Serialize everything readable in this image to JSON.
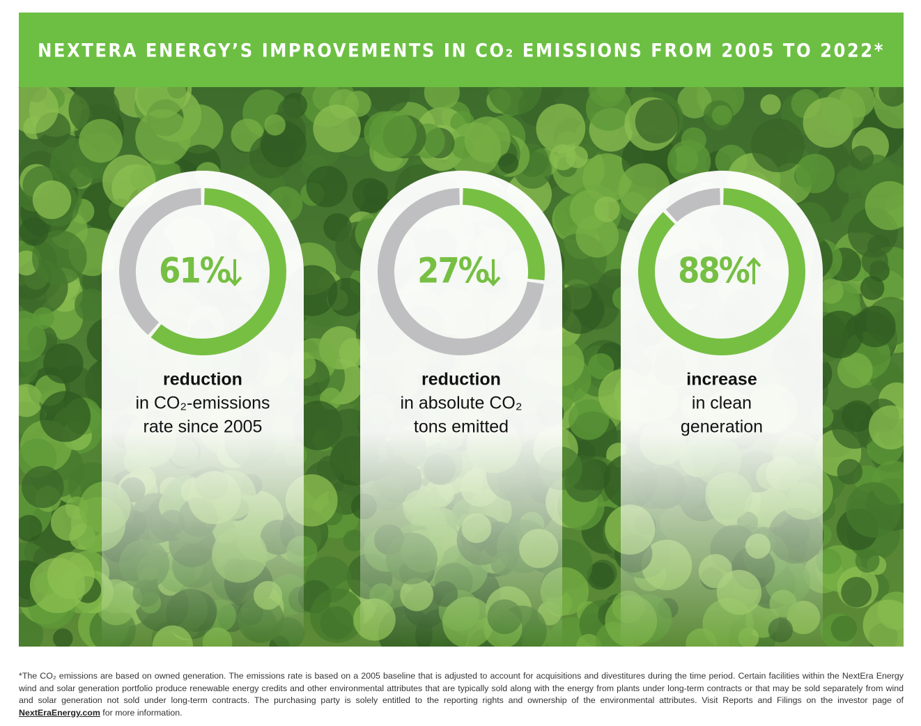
{
  "header": {
    "title": "NEXTERA ENERGY’S IMPROVEMENTS IN CO₂ EMISSIONS FROM 2005 TO 2022*"
  },
  "chart_data": [
    {
      "type": "donut",
      "values": [
        61
      ],
      "value_labels": [
        "61%"
      ],
      "direction": "down",
      "color": "#76bf43",
      "rest_color": "#bfbfc1",
      "caption_bold": "reduction",
      "caption_lines": [
        "in CO₂-emissions",
        "rate since 2005"
      ]
    },
    {
      "type": "donut",
      "values": [
        27
      ],
      "value_labels": [
        "27%"
      ],
      "direction": "down",
      "color": "#76bf43",
      "rest_color": "#bfbfc1",
      "caption_bold": "reduction",
      "caption_lines": [
        "in absolute CO₂",
        "tons emitted"
      ]
    },
    {
      "type": "donut",
      "values": [
        88
      ],
      "value_labels": [
        "88%"
      ],
      "direction": "up",
      "color": "#76bf43",
      "rest_color": "#bfbfc1",
      "caption_bold": "increase",
      "caption_lines": [
        "in clean",
        "generation"
      ]
    }
  ],
  "footnote": {
    "text": "*The CO₂ emissions are based on owned generation. The emissions rate is based on a 2005 baseline that is adjusted to account for acquisitions and divestitures during the time period. Certain facilities within the NextEra Energy wind and solar generation portfolio produce renewable energy credits and other environmental attributes that are typically sold along with the energy from plants under long-term contracts or that may be sold separately from wind and solar generation not sold under long-term contracts. The purchasing party is solely entitled to the reporting rights and ownership of the environmental attributes. Visit Reports and Filings on the investor page of",
    "link": "NextEraEnergy.com",
    "text_after": "for more information."
  }
}
